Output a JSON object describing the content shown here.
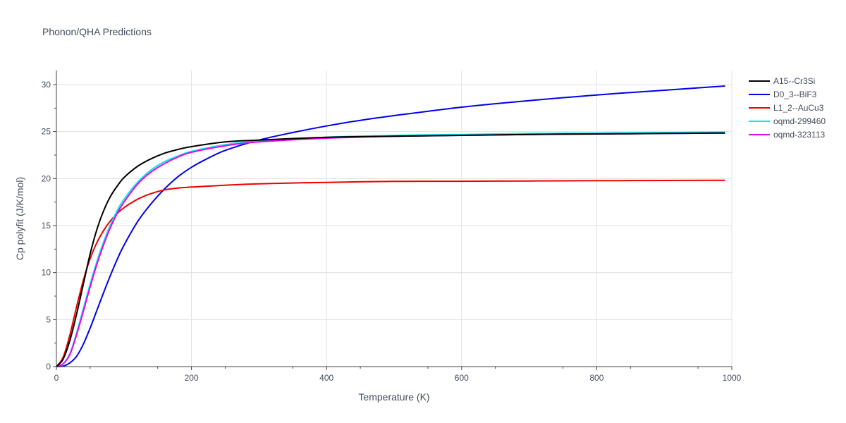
{
  "chart_data": {
    "type": "line",
    "title": "Phonon/QHA Predictions",
    "xlabel": "Temperature (K)",
    "ylabel": "Cp polyfit (J/K/mol)",
    "xlim": [
      0,
      1000
    ],
    "ylim": [
      0,
      31.5
    ],
    "xticks": [
      0,
      200,
      400,
      600,
      800,
      1000
    ],
    "yticks": [
      0,
      5,
      10,
      15,
      20,
      25,
      30
    ],
    "grid": true,
    "legend_position": "top-right",
    "series": [
      {
        "name": "A15--Cr3Si",
        "color": "#000000",
        "x": [
          0,
          10,
          20,
          30,
          40,
          50,
          60,
          70,
          80,
          90,
          100,
          120,
          140,
          160,
          180,
          200,
          250,
          300,
          400,
          500,
          600,
          700,
          800,
          900,
          990
        ],
        "y": [
          0,
          0.8,
          2.8,
          5.6,
          8.8,
          12.0,
          14.6,
          16.6,
          18.1,
          19.2,
          20.1,
          21.3,
          22.1,
          22.7,
          23.1,
          23.4,
          23.9,
          24.1,
          24.4,
          24.5,
          24.6,
          24.7,
          24.75,
          24.8,
          24.85
        ]
      },
      {
        "name": "D0_3--BiF3",
        "color": "#0000ee",
        "x": [
          0,
          10,
          20,
          30,
          40,
          50,
          60,
          70,
          80,
          90,
          100,
          120,
          140,
          160,
          180,
          200,
          220,
          250,
          300,
          350,
          400,
          450,
          500,
          600,
          700,
          800,
          900,
          990
        ],
        "y": [
          0,
          0.05,
          0.4,
          1.1,
          2.4,
          4.1,
          6.0,
          7.9,
          9.7,
          11.4,
          12.9,
          15.4,
          17.3,
          18.9,
          20.2,
          21.2,
          22.0,
          23.0,
          24.1,
          24.9,
          25.6,
          26.2,
          26.7,
          27.6,
          28.3,
          28.9,
          29.4,
          29.85
        ]
      },
      {
        "name": "L1_2--AuCu3",
        "color": "#ee0000",
        "x": [
          0,
          10,
          20,
          30,
          40,
          50,
          60,
          70,
          80,
          90,
          100,
          120,
          140,
          160,
          180,
          200,
          250,
          300,
          400,
          500,
          600,
          700,
          800,
          900,
          990
        ],
        "y": [
          0,
          1.0,
          3.4,
          6.4,
          9.2,
          11.5,
          13.2,
          14.5,
          15.5,
          16.3,
          16.9,
          17.8,
          18.4,
          18.8,
          19.0,
          19.1,
          19.3,
          19.45,
          19.6,
          19.7,
          19.72,
          19.75,
          19.78,
          19.8,
          19.82
        ]
      },
      {
        "name": "oqmd-299460",
        "color": "#00eeee",
        "x": [
          0,
          10,
          20,
          30,
          40,
          50,
          60,
          70,
          80,
          90,
          100,
          120,
          140,
          160,
          180,
          200,
          250,
          300,
          400,
          500,
          600,
          700,
          800,
          900,
          990
        ],
        "y": [
          0,
          0.3,
          1.4,
          3.6,
          6.2,
          8.8,
          11.2,
          13.3,
          15.1,
          16.6,
          17.8,
          19.6,
          20.9,
          21.8,
          22.4,
          22.9,
          23.6,
          24.0,
          24.4,
          24.6,
          24.7,
          24.8,
          24.85,
          24.9,
          24.95
        ]
      },
      {
        "name": "oqmd-323113",
        "color": "#ee00ee",
        "x": [
          0,
          10,
          20,
          30,
          40,
          50,
          60,
          70,
          80,
          90,
          100,
          120,
          140,
          160,
          180,
          200,
          250,
          300,
          400,
          500,
          600,
          700,
          800,
          900,
          990
        ],
        "y": [
          0,
          0.3,
          1.3,
          3.4,
          5.9,
          8.5,
          10.9,
          13.0,
          14.8,
          16.3,
          17.5,
          19.4,
          20.7,
          21.6,
          22.3,
          22.8,
          23.5,
          23.9,
          24.3,
          24.5,
          24.6,
          24.7,
          24.75,
          24.8,
          24.85
        ]
      }
    ]
  }
}
